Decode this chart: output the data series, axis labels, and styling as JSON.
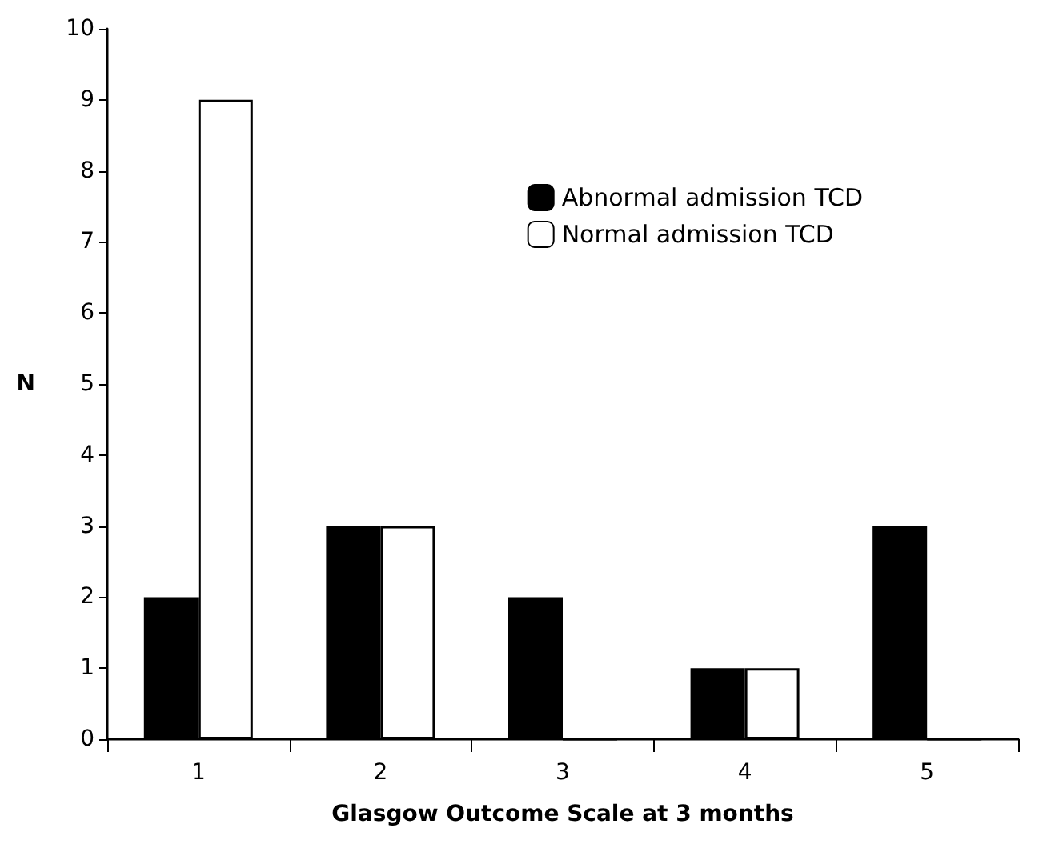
{
  "chart_data": {
    "type": "bar",
    "xlabel": "Glasgow Outcome Scale at 3 months",
    "ylabel": "N",
    "categories": [
      "1",
      "2",
      "3",
      "4",
      "5"
    ],
    "series": [
      {
        "name": "Abnormal admission TCD",
        "color": "#000000",
        "values": [
          2,
          3,
          2,
          1,
          3
        ]
      },
      {
        "name": "Normal admission TCD",
        "color": "#ffffff",
        "values": [
          9,
          3,
          0,
          1,
          0
        ]
      }
    ],
    "ylim": [
      0,
      10
    ],
    "yticks": [
      0,
      1,
      2,
      3,
      4,
      5,
      6,
      7,
      8,
      9,
      10
    ],
    "grid": false,
    "legend": "top right"
  }
}
